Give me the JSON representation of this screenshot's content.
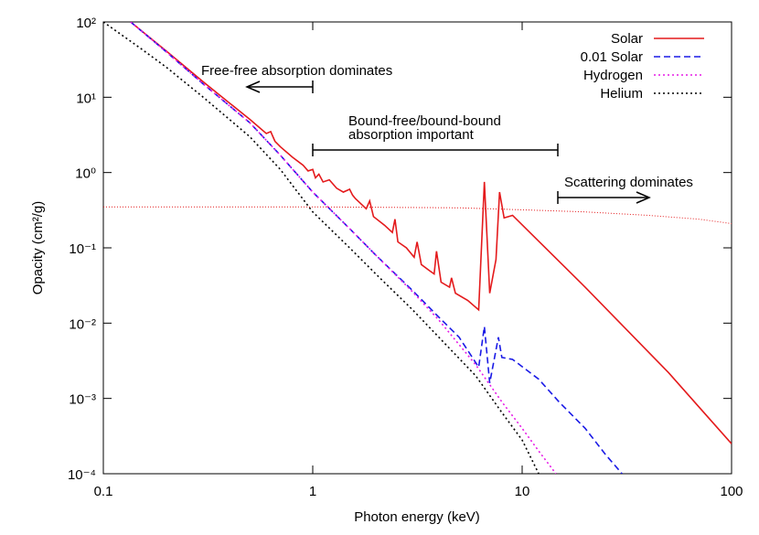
{
  "chart_data": {
    "type": "line",
    "xlabel": "Photon energy (keV)",
    "ylabel": "Opacity (cm²/g)",
    "xscale": "log",
    "yscale": "log",
    "xlim": [
      0.1,
      100
    ],
    "ylim": [
      0.0001,
      100
    ],
    "xticks": [
      0.1,
      1,
      10,
      100
    ],
    "yticks": [
      {
        "value": 0.0001,
        "label": "10⁻⁴"
      },
      {
        "value": 0.001,
        "label": "10⁻³"
      },
      {
        "value": 0.01,
        "label": "10⁻²"
      },
      {
        "value": 0.1,
        "label": "10⁻¹"
      },
      {
        "value": 1,
        "label": "10⁰"
      },
      {
        "value": 10,
        "label": "10¹"
      },
      {
        "value": 100,
        "label": "10²"
      }
    ],
    "legend": "upper right",
    "series": [
      {
        "name": "Solar",
        "color": "#e41a1c",
        "dash": "solid",
        "x": [
          0.135,
          0.2,
          0.3,
          0.4,
          0.5,
          0.6,
          0.63,
          0.66,
          0.7,
          0.8,
          0.9,
          0.95,
          1.0,
          1.03,
          1.07,
          1.12,
          1.2,
          1.3,
          1.4,
          1.5,
          1.55,
          1.6,
          1.8,
          1.87,
          1.95,
          2.2,
          2.4,
          2.47,
          2.55,
          2.8,
          3.05,
          3.15,
          3.3,
          3.6,
          3.8,
          3.9,
          4.1,
          4.5,
          4.6,
          4.8,
          5.5,
          6.2,
          6.6,
          7.0,
          7.5,
          7.8,
          8.2,
          9.0,
          20,
          50,
          100
        ],
        "values": [
          100,
          41,
          16,
          8.4,
          5.1,
          3.3,
          3.5,
          2.6,
          2.2,
          1.6,
          1.25,
          1.05,
          1.1,
          0.85,
          0.95,
          0.75,
          0.8,
          0.62,
          0.55,
          0.6,
          0.5,
          0.45,
          0.33,
          0.42,
          0.26,
          0.2,
          0.16,
          0.24,
          0.12,
          0.1,
          0.075,
          0.12,
          0.06,
          0.05,
          0.045,
          0.09,
          0.035,
          0.03,
          0.04,
          0.025,
          0.02,
          0.015,
          0.75,
          0.025,
          0.07,
          0.55,
          0.25,
          0.27,
          0.03,
          0.0022,
          0.00025
        ]
      },
      {
        "name": "0.01 Solar",
        "color": "#1a1ae6",
        "dash": "dashed",
        "x": [
          0.135,
          0.2,
          0.3,
          0.5,
          0.7,
          1,
          1.5,
          2,
          3,
          4,
          5,
          6.2,
          6.6,
          7.0,
          7.7,
          8.0,
          9,
          12,
          15,
          20,
          25,
          30
        ],
        "values": [
          100,
          40,
          15,
          4.6,
          1.7,
          0.55,
          0.18,
          0.08,
          0.027,
          0.012,
          0.0065,
          0.0026,
          0.009,
          0.0016,
          0.0065,
          0.0035,
          0.0033,
          0.0018,
          0.0009,
          0.0004,
          0.00018,
          0.0001
        ]
      },
      {
        "name": "Hydrogen",
        "color": "#e61ae6",
        "dash": "dotted",
        "x": [
          0.135,
          0.2,
          0.3,
          0.5,
          0.7,
          1,
          1.5,
          2,
          3,
          4,
          6,
          8,
          10,
          12,
          14.5
        ],
        "values": [
          100,
          40,
          15,
          4.6,
          1.7,
          0.55,
          0.18,
          0.08,
          0.026,
          0.011,
          0.0028,
          0.0009,
          0.0004,
          0.0002,
          0.0001
        ]
      },
      {
        "name": "Helium",
        "color": "#000000",
        "dash": "dotted",
        "x": [
          0.1,
          0.15,
          0.2,
          0.3,
          0.5,
          0.7,
          1,
          1.5,
          2,
          3,
          4,
          6,
          8,
          10,
          12
        ],
        "values": [
          100,
          45,
          25,
          10,
          3.0,
          1.1,
          0.3,
          0.1,
          0.045,
          0.015,
          0.0065,
          0.002,
          0.00065,
          0.00028,
          0.0001
        ]
      },
      {
        "color": "#e41a1c",
        "dash": "fine-dotted",
        "x": [
          0.1,
          1,
          5,
          10,
          20,
          40,
          70,
          100
        ],
        "values": [
          0.35,
          0.35,
          0.34,
          0.32,
          0.3,
          0.27,
          0.24,
          0.21
        ]
      }
    ],
    "annotations": [
      "Free-free absorption dominates",
      "Bound-free/bound-bound",
      "absorption important",
      "Scattering dominates"
    ]
  }
}
